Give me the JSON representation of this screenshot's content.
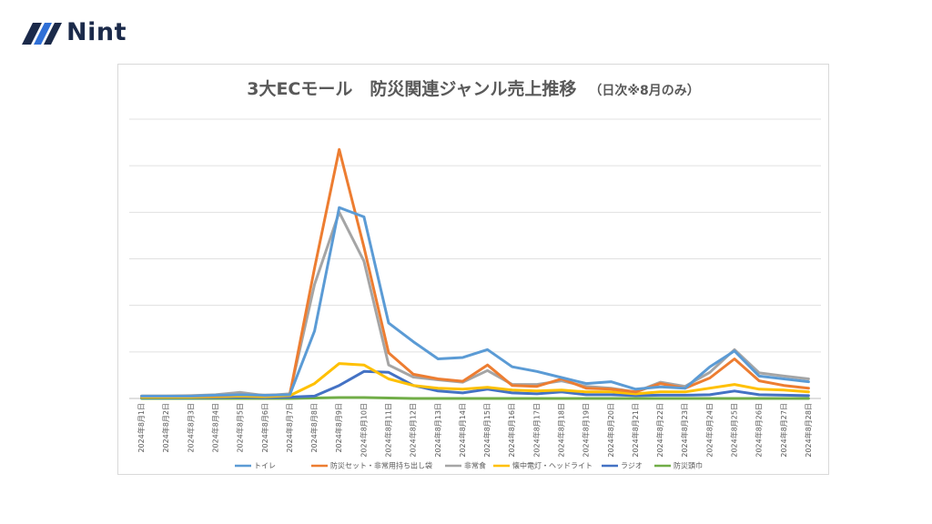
{
  "logo": {
    "text": "Nint",
    "color": "#1b2a4a",
    "accent": "#2f6fd6"
  },
  "chart_data": {
    "type": "line",
    "title": "3大ECモール　防災関連ジャンル売上推移",
    "subtitle": "（日次※8月のみ）",
    "xlabel": "",
    "ylabel": "",
    "ylim": [
      0,
      6
    ],
    "grid": true,
    "legend_position": "bottom",
    "categories": [
      "2024年8月1日",
      "2024年8月2日",
      "2024年8月3日",
      "2024年8月4日",
      "2024年8月5日",
      "2024年8月6日",
      "2024年8月7日",
      "2024年8月8日",
      "2024年8月9日",
      "2024年8月10日",
      "2024年8月11日",
      "2024年8月12日",
      "2024年8月13日",
      "2024年8月14日",
      "2024年8月15日",
      "2024年8月16日",
      "2024年8月17日",
      "2024年8月18日",
      "2024年8月19日",
      "2024年8月20日",
      "2024年8月21日",
      "2024年8月22日",
      "2024年8月23日",
      "2024年8月24日",
      "2024年8月25日",
      "2024年8月26日",
      "2024年8月27日",
      "2024年8月28日"
    ],
    "series": [
      {
        "name": "トイレ",
        "color": "#5b9bd5",
        "values": [
          0.05,
          0.05,
          0.05,
          0.07,
          0.08,
          0.07,
          0.08,
          1.45,
          4.1,
          3.9,
          1.62,
          1.22,
          0.85,
          0.88,
          1.05,
          0.68,
          0.58,
          0.45,
          0.32,
          0.36,
          0.2,
          0.25,
          0.22,
          0.68,
          1.02,
          0.48,
          0.42,
          0.36
        ]
      },
      {
        "name": "防災セット・非常用持ち出し袋",
        "color": "#ed7d31",
        "values": [
          0.05,
          0.05,
          0.05,
          0.06,
          0.08,
          0.07,
          0.08,
          2.8,
          5.35,
          3.25,
          0.98,
          0.52,
          0.42,
          0.37,
          0.72,
          0.28,
          0.26,
          0.42,
          0.22,
          0.2,
          0.14,
          0.32,
          0.22,
          0.44,
          0.85,
          0.38,
          0.28,
          0.22
        ]
      },
      {
        "name": "非常食",
        "color": "#a5a5a5",
        "values": [
          0.05,
          0.05,
          0.06,
          0.08,
          0.13,
          0.06,
          0.1,
          2.45,
          4.0,
          2.95,
          0.72,
          0.46,
          0.4,
          0.35,
          0.6,
          0.3,
          0.3,
          0.38,
          0.26,
          0.22,
          0.14,
          0.35,
          0.26,
          0.56,
          1.05,
          0.55,
          0.48,
          0.42
        ]
      },
      {
        "name": "懐中電灯・ヘッドライト",
        "color": "#ffc000",
        "values": [
          0.03,
          0.03,
          0.03,
          0.04,
          0.05,
          0.04,
          0.06,
          0.32,
          0.75,
          0.72,
          0.42,
          0.28,
          0.22,
          0.2,
          0.24,
          0.18,
          0.16,
          0.18,
          0.14,
          0.14,
          0.1,
          0.14,
          0.14,
          0.22,
          0.3,
          0.2,
          0.18,
          0.14
        ]
      },
      {
        "name": "ラジオ",
        "color": "#4472c4",
        "values": [
          0.02,
          0.02,
          0.02,
          0.02,
          0.03,
          0.02,
          0.03,
          0.05,
          0.28,
          0.58,
          0.56,
          0.28,
          0.16,
          0.12,
          0.2,
          0.12,
          0.1,
          0.14,
          0.08,
          0.08,
          0.06,
          0.07,
          0.07,
          0.08,
          0.16,
          0.08,
          0.07,
          0.06
        ]
      },
      {
        "name": "防災頭巾",
        "color": "#70ad47",
        "values": [
          0.0,
          0.0,
          0.0,
          0.0,
          0.0,
          0.0,
          0.0,
          0.01,
          0.02,
          0.02,
          0.01,
          0.0,
          0.0,
          0.0,
          0.0,
          0.0,
          0.0,
          0.0,
          0.0,
          0.0,
          0.0,
          0.0,
          0.0,
          0.0,
          0.0,
          0.0,
          0.0,
          0.0
        ]
      }
    ]
  }
}
